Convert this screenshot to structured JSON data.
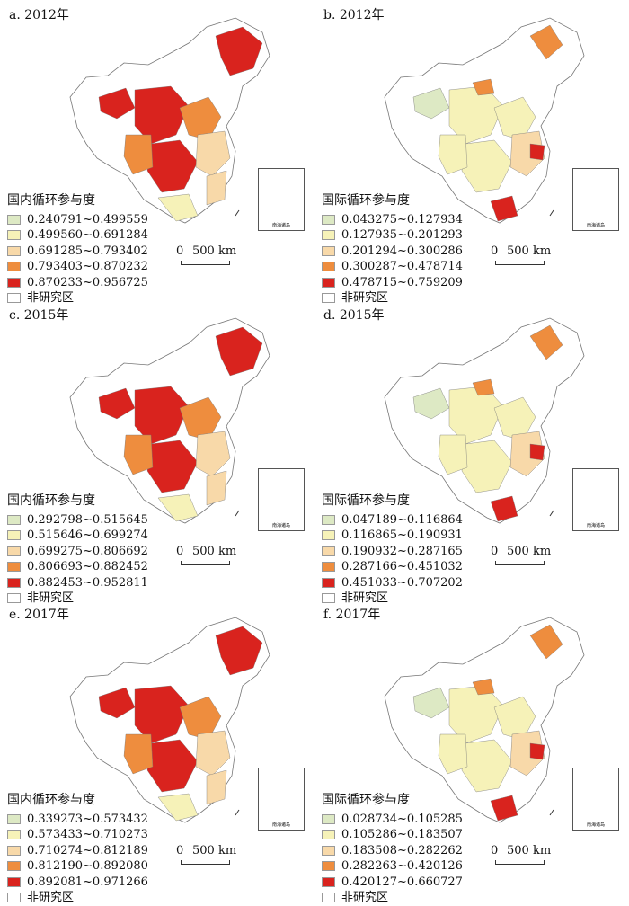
{
  "panels": [
    {
      "id": "a",
      "title": "a. 2012年",
      "legend_title": "国内循环参与度",
      "classes": [
        "0.240791~0.499559",
        "0.499560~0.691284",
        "0.691285~0.793402",
        "0.793403~0.870232",
        "0.870233~0.956725"
      ],
      "colors": [
        "#dde9c4",
        "#f6f2b8",
        "#f8d9a9",
        "#ee8d3e",
        "#d9231e"
      ]
    },
    {
      "id": "b",
      "title": "b. 2012年",
      "legend_title": "国际循环参与度",
      "classes": [
        "0.043275~0.127934",
        "0.127935~0.201293",
        "0.201294~0.300286",
        "0.300287~0.478714",
        "0.478715~0.759209"
      ],
      "colors": [
        "#dde9c4",
        "#f6f2b8",
        "#f8d9a9",
        "#ee8d3e",
        "#d9231e"
      ]
    },
    {
      "id": "c",
      "title": "c. 2015年",
      "legend_title": "国内循环参与度",
      "classes": [
        "0.292798~0.515645",
        "0.515646~0.699274",
        "0.699275~0.806692",
        "0.806693~0.882452",
        "0.882453~0.952811"
      ],
      "colors": [
        "#dde9c4",
        "#f6f2b8",
        "#f8d9a9",
        "#ee8d3e",
        "#d9231e"
      ]
    },
    {
      "id": "d",
      "title": "d. 2015年",
      "legend_title": "国际循环参与度",
      "classes": [
        "0.047189~0.116864",
        "0.116865~0.190931",
        "0.190932~0.287165",
        "0.287166~0.451032",
        "0.451033~0.707202"
      ],
      "colors": [
        "#dde9c4",
        "#f6f2b8",
        "#f8d9a9",
        "#ee8d3e",
        "#d9231e"
      ]
    },
    {
      "id": "e",
      "title": "e. 2017年",
      "legend_title": "国内循环参与度",
      "classes": [
        "0.339273~0.573432",
        "0.573433~0.710273",
        "0.710274~0.812189",
        "0.812190~0.892080",
        "0.892081~0.971266"
      ],
      "colors": [
        "#dde9c4",
        "#f6f2b8",
        "#f8d9a9",
        "#ee8d3e",
        "#d9231e"
      ]
    },
    {
      "id": "f",
      "title": "f. 2017年",
      "legend_title": "国际循环参与度",
      "classes": [
        "0.028734~0.105285",
        "0.105286~0.183507",
        "0.183508~0.282262",
        "0.282263~0.420126",
        "0.420127~0.660727"
      ],
      "colors": [
        "#dde9c4",
        "#f6f2b8",
        "#f8d9a9",
        "#ee8d3e",
        "#d9231e"
      ]
    }
  ],
  "non_study_label": "非研究区",
  "scale": {
    "zero": "0",
    "distance": "500 km"
  },
  "inset_label": "南海诸岛",
  "colors": {
    "non_study": "#ffffff",
    "border": "#777777"
  }
}
